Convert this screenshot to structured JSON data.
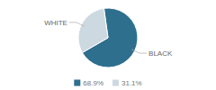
{
  "chart_data": {
    "type": "pie",
    "categories": [
      "BLACK",
      "WHITE"
    ],
    "values": [
      68.9,
      31.1
    ],
    "value_labels": [
      "68.9%",
      "31.1%"
    ],
    "colors": [
      "#2e6f8e",
      "#cdd9e0"
    ],
    "legend": "bottom"
  }
}
